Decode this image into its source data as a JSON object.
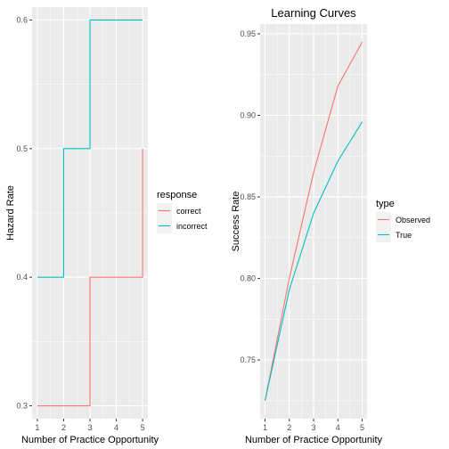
{
  "colors": {
    "panel_bg": "#ebebeb",
    "grid": "#ffffff",
    "tick_text": "#4d4d4d",
    "red": "#f8766d",
    "teal": "#00bfc4"
  },
  "chart_data": [
    {
      "type": "line",
      "title": "",
      "xlabel": "Number of Practice Opportunity",
      "ylabel": "Hazard Rate",
      "x": [
        1,
        2,
        3,
        4,
        5
      ],
      "xlim": [
        0.8,
        5.2
      ],
      "ylim": [
        0.29,
        0.61
      ],
      "x_ticks": [
        1,
        2,
        3,
        4,
        5
      ],
      "y_ticks": [
        0.3,
        0.4,
        0.5,
        0.6
      ],
      "y_tick_labels": [
        "0.3",
        "0.4",
        "0.5",
        "0.6"
      ],
      "line_shape": "step",
      "grid": true,
      "legend": {
        "title": "response",
        "position": "right"
      },
      "series": [
        {
          "name": "correct",
          "color": "#f8766d",
          "values": [
            0.3,
            0.3,
            0.4,
            0.4,
            0.5
          ]
        },
        {
          "name": "incorrect",
          "color": "#00bfc4",
          "values": [
            0.4,
            0.5,
            0.6,
            0.6,
            0.6
          ]
        }
      ]
    },
    {
      "type": "line",
      "title": "Learning Curves",
      "xlabel": "Number of Practice Opportunity",
      "ylabel": "Success Rate",
      "x": [
        1,
        2,
        3,
        4,
        5
      ],
      "xlim": [
        0.8,
        5.2
      ],
      "ylim": [
        0.714,
        0.956
      ],
      "x_ticks": [
        1,
        2,
        3,
        4,
        5
      ],
      "y_ticks": [
        0.75,
        0.8,
        0.85,
        0.9,
        0.95
      ],
      "y_tick_labels": [
        "0.75",
        "0.80",
        "0.85",
        "0.90",
        "0.95"
      ],
      "line_shape": "linear",
      "grid": true,
      "legend": {
        "title": "type",
        "position": "right"
      },
      "series": [
        {
          "name": "Observed",
          "color": "#f8766d",
          "values": [
            0.725,
            0.8,
            0.865,
            0.918,
            0.945
          ]
        },
        {
          "name": "True",
          "color": "#00bfc4",
          "values": [
            0.725,
            0.793,
            0.84,
            0.872,
            0.896
          ]
        }
      ]
    }
  ]
}
